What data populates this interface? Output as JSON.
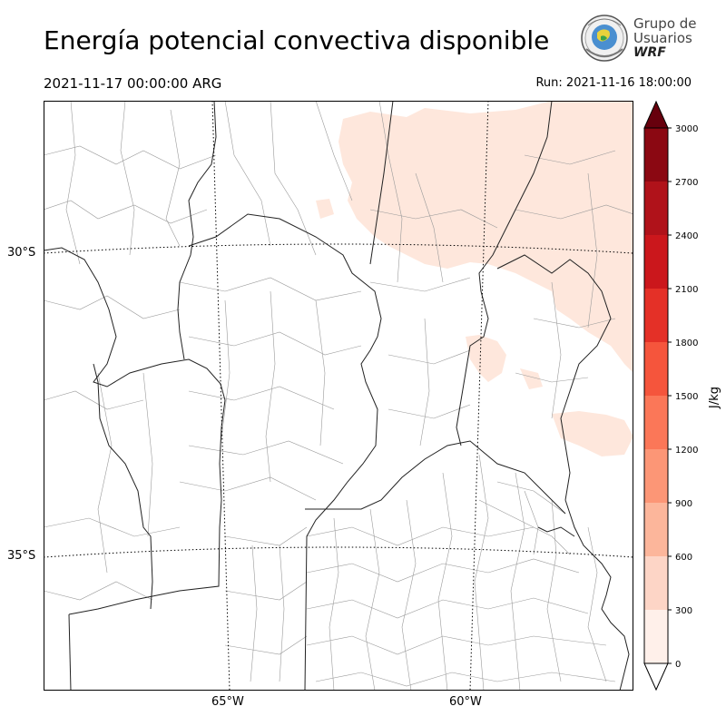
{
  "header": {
    "title": "Energía potencial convectiva disponible",
    "valid_time": "2021-11-17 00:00:00 ARG",
    "run_time": "Run: 2021-11-16 18:00:00"
  },
  "logo": {
    "line1": "Grupo de",
    "line2": "Usuarios",
    "line3": "WRF"
  },
  "map": {
    "lat_labels": [
      "30°S",
      "35°S"
    ],
    "lon_labels": [
      "65°W",
      "60°W"
    ]
  },
  "colorbar": {
    "unit": "J/kg",
    "ticks": [
      "0",
      "300",
      "600",
      "900",
      "1200",
      "1500",
      "1800",
      "2100",
      "2400",
      "2700",
      "3000"
    ],
    "colors": [
      "#fff0ea",
      "#fdd5c6",
      "#fcb69b",
      "#fc9676",
      "#fb7758",
      "#f5553c",
      "#e43027",
      "#cb171c",
      "#b0121a",
      "#8b0812"
    ],
    "over_color": "#67000d"
  }
}
